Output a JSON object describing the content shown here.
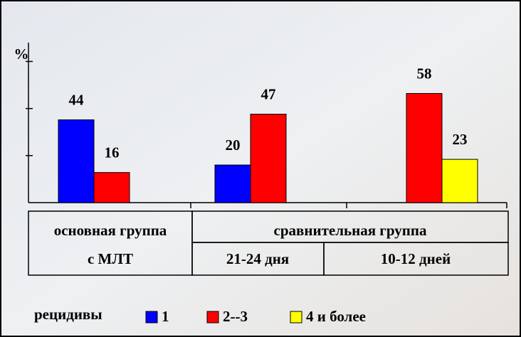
{
  "chart_data": {
    "type": "bar",
    "y_label": "%",
    "categories": [
      null,
      null,
      null
    ],
    "series": [
      {
        "name": "1",
        "color": "#0000ff",
        "values": [
          44,
          20,
          null
        ]
      },
      {
        "name": "2--3",
        "color": "#ff0000",
        "values": [
          16,
          47,
          58
        ]
      },
      {
        "name": "4 и более",
        "color": "#ffff00",
        "values": [
          null,
          null,
          23
        ]
      }
    ],
    "ylim": [
      0,
      85
    ],
    "yticks": [
      25,
      50,
      75
    ],
    "legend_title": "рецидивы",
    "group_table": {
      "main": [
        "основная группа",
        "с МЛТ"
      ],
      "comparison": "сравнительная группа",
      "subgroups": [
        "21-24 дня",
        "10-12 дней"
      ]
    }
  }
}
